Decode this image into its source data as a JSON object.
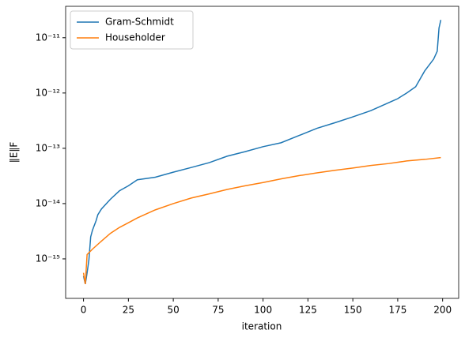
{
  "chart_data": {
    "type": "line",
    "xlabel": "iteration",
    "ylabel": "‖E‖F",
    "xlim": [
      -9.95,
      208.95
    ],
    "ylim": [
      1.93e-16,
      3.7e-11
    ],
    "log_y": true,
    "xticks": [
      0,
      25,
      50,
      75,
      100,
      125,
      150,
      175,
      200
    ],
    "yticks": [
      {
        "value": 1e-15,
        "label": "10⁻¹⁵"
      },
      {
        "value": 1e-14,
        "label": "10⁻¹⁴"
      },
      {
        "value": 1e-13,
        "label": "10⁻¹³"
      },
      {
        "value": 1e-12,
        "label": "10⁻¹²"
      },
      {
        "value": 1e-11,
        "label": "10⁻¹¹"
      }
    ],
    "legend": "upper-left",
    "series": [
      {
        "name": "Gram-Schmidt",
        "color": "#1f77b4",
        "x": [
          0,
          1,
          2,
          3,
          4,
          5,
          7,
          8,
          10,
          15,
          20,
          25,
          30,
          40,
          50,
          60,
          70,
          80,
          90,
          100,
          110,
          120,
          130,
          140,
          150,
          160,
          170,
          175,
          180,
          185,
          190,
          195,
          197,
          198,
          199
        ],
        "values": [
          4.9e-16,
          3.5e-16,
          5.6e-16,
          9.5e-16,
          2.5e-15,
          3.3e-15,
          4.9e-15,
          6.3e-15,
          8e-15,
          1.2e-14,
          1.7e-14,
          2.1e-14,
          2.7e-14,
          3e-14,
          3.7e-14,
          4.5e-14,
          5.5e-14,
          7.2e-14,
          8.7e-14,
          1.07e-13,
          1.26e-13,
          1.7e-13,
          2.3e-13,
          2.9e-13,
          3.7e-13,
          4.8e-13,
          6.7e-13,
          7.9e-13,
          1e-12,
          1.3e-12,
          2.5e-12,
          4.1e-12,
          5.7e-12,
          1.5e-11,
          2.1e-11
        ]
      },
      {
        "name": "Householder",
        "color": "#ff7f0e",
        "x": [
          0,
          1,
          2,
          5,
          10,
          15,
          20,
          25,
          30,
          40,
          50,
          60,
          70,
          80,
          90,
          100,
          110,
          120,
          130,
          140,
          150,
          160,
          170,
          180,
          190,
          199
        ],
        "values": [
          5.6e-16,
          3.5e-16,
          1.2e-15,
          1.5e-15,
          2.1e-15,
          2.9e-15,
          3.7e-15,
          4.5e-15,
          5.5e-15,
          7.7e-15,
          1e-14,
          1.26e-14,
          1.5e-14,
          1.8e-14,
          2.1e-14,
          2.4e-14,
          2.8e-14,
          3.2e-14,
          3.6e-14,
          4e-14,
          4.4e-14,
          4.9e-14,
          5.3e-14,
          5.9e-14,
          6.3e-14,
          6.8e-14
        ]
      }
    ]
  }
}
